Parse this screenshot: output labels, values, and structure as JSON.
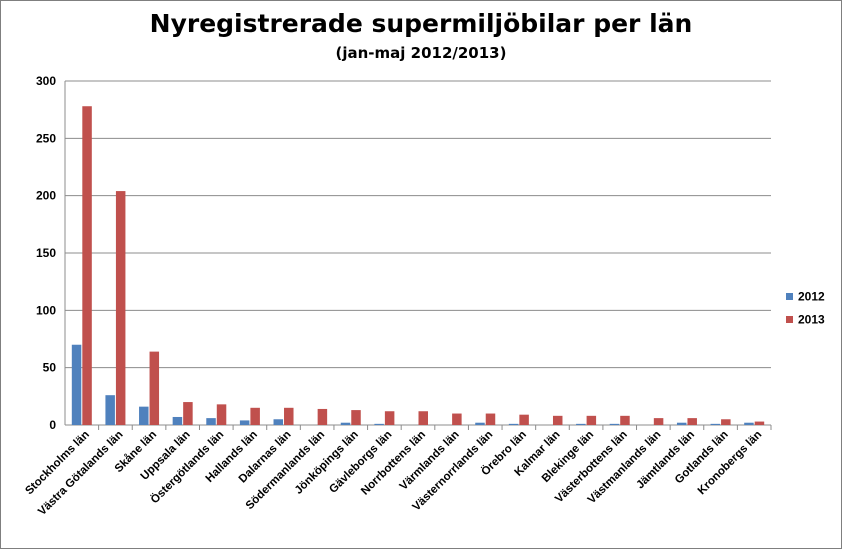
{
  "chart_data": {
    "type": "bar",
    "title": "Nyregistrerade supermiljöbilar per län",
    "subtitle": "(jan-maj 2012/2013)",
    "xlabel": "",
    "ylabel": "",
    "ylim": [
      0,
      300
    ],
    "yticks": [
      0,
      50,
      100,
      150,
      200,
      250,
      300
    ],
    "grid": true,
    "legend_position": "right",
    "categories": [
      "Stockholms län",
      "Västra Götalands län",
      "Skåne län",
      "Uppsala län",
      "Östergötlands län",
      "Hallands län",
      "Dalarnas län",
      "Södermanlands län",
      "Jönköpings län",
      "Gävleborgs län",
      "Norrbottens län",
      "Värmlands län",
      "Västernorrlands län",
      "Örebro län",
      "Kalmar län",
      "Blekinge län",
      "Västerbottens län",
      "Västmanlands län",
      "Jämtlands län",
      "Gotlands län",
      "Kronobergs län"
    ],
    "series": [
      {
        "name": "2012",
        "color": "#4f81bd",
        "values": [
          70,
          26,
          16,
          7,
          6,
          4,
          5,
          0,
          2,
          1,
          0,
          0,
          2,
          1,
          0,
          1,
          1,
          0,
          2,
          1,
          2
        ]
      },
      {
        "name": "2013",
        "color": "#c0504d",
        "values": [
          278,
          204,
          64,
          20,
          18,
          15,
          15,
          14,
          13,
          12,
          12,
          10,
          10,
          9,
          8,
          8,
          8,
          6,
          6,
          5,
          3
        ]
      }
    ]
  }
}
